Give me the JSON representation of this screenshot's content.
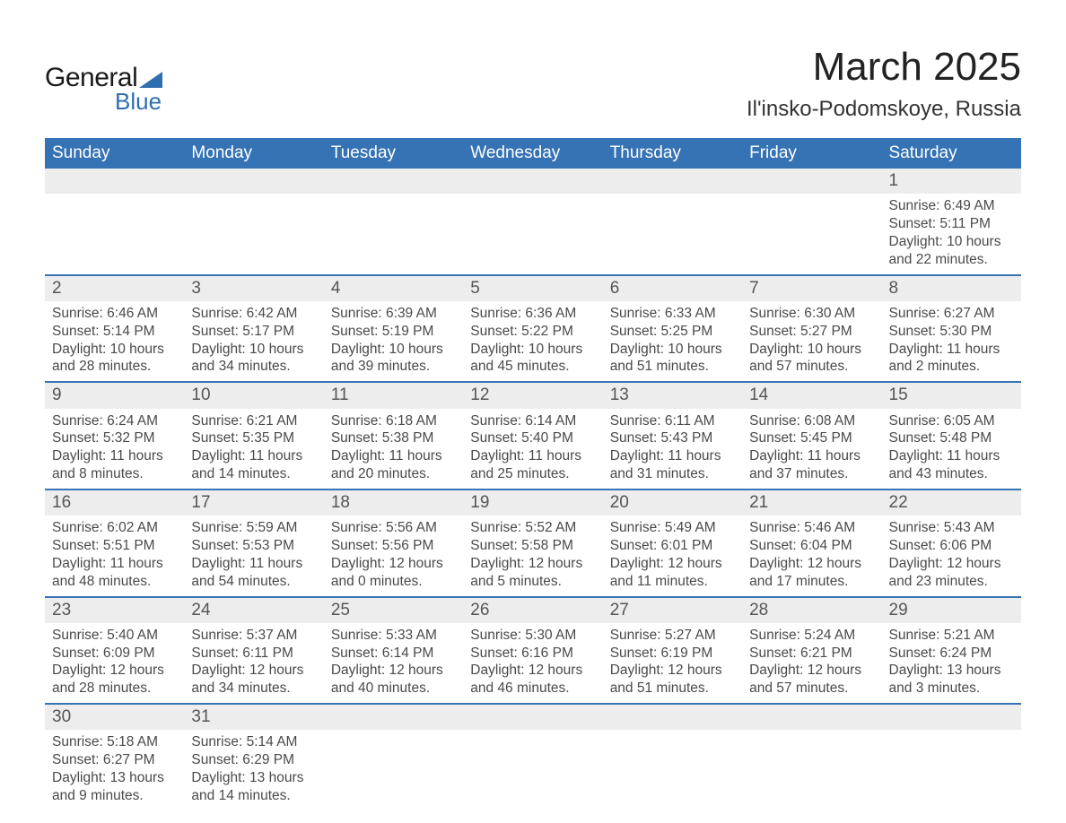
{
  "brand": {
    "word1": "General",
    "word2": "Blue",
    "accent_color": "#2f6fb0"
  },
  "title": "March 2025",
  "location": "Il'insko-Podomskoye, Russia",
  "colors": {
    "header_bg": "#3573b4",
    "header_text": "#ffffff",
    "row_divider": "#3573b4",
    "daynum_bg": "#ededed",
    "body_text": "#4a4a4a",
    "page_bg": "#ffffff"
  },
  "typography": {
    "title_fontsize": 44,
    "location_fontsize": 24,
    "weekday_fontsize": 19,
    "daynum_fontsize": 19,
    "cell_fontsize": 15.5
  },
  "weekdays": [
    "Sunday",
    "Monday",
    "Tuesday",
    "Wednesday",
    "Thursday",
    "Friday",
    "Saturday"
  ],
  "weeks": [
    [
      null,
      null,
      null,
      null,
      null,
      null,
      {
        "n": 1,
        "sunrise": "6:49 AM",
        "sunset": "5:11 PM",
        "daylight": "10 hours and 22 minutes."
      }
    ],
    [
      {
        "n": 2,
        "sunrise": "6:46 AM",
        "sunset": "5:14 PM",
        "daylight": "10 hours and 28 minutes."
      },
      {
        "n": 3,
        "sunrise": "6:42 AM",
        "sunset": "5:17 PM",
        "daylight": "10 hours and 34 minutes."
      },
      {
        "n": 4,
        "sunrise": "6:39 AM",
        "sunset": "5:19 PM",
        "daylight": "10 hours and 39 minutes."
      },
      {
        "n": 5,
        "sunrise": "6:36 AM",
        "sunset": "5:22 PM",
        "daylight": "10 hours and 45 minutes."
      },
      {
        "n": 6,
        "sunrise": "6:33 AM",
        "sunset": "5:25 PM",
        "daylight": "10 hours and 51 minutes."
      },
      {
        "n": 7,
        "sunrise": "6:30 AM",
        "sunset": "5:27 PM",
        "daylight": "10 hours and 57 minutes."
      },
      {
        "n": 8,
        "sunrise": "6:27 AM",
        "sunset": "5:30 PM",
        "daylight": "11 hours and 2 minutes."
      }
    ],
    [
      {
        "n": 9,
        "sunrise": "6:24 AM",
        "sunset": "5:32 PM",
        "daylight": "11 hours and 8 minutes."
      },
      {
        "n": 10,
        "sunrise": "6:21 AM",
        "sunset": "5:35 PM",
        "daylight": "11 hours and 14 minutes."
      },
      {
        "n": 11,
        "sunrise": "6:18 AM",
        "sunset": "5:38 PM",
        "daylight": "11 hours and 20 minutes."
      },
      {
        "n": 12,
        "sunrise": "6:14 AM",
        "sunset": "5:40 PM",
        "daylight": "11 hours and 25 minutes."
      },
      {
        "n": 13,
        "sunrise": "6:11 AM",
        "sunset": "5:43 PM",
        "daylight": "11 hours and 31 minutes."
      },
      {
        "n": 14,
        "sunrise": "6:08 AM",
        "sunset": "5:45 PM",
        "daylight": "11 hours and 37 minutes."
      },
      {
        "n": 15,
        "sunrise": "6:05 AM",
        "sunset": "5:48 PM",
        "daylight": "11 hours and 43 minutes."
      }
    ],
    [
      {
        "n": 16,
        "sunrise": "6:02 AM",
        "sunset": "5:51 PM",
        "daylight": "11 hours and 48 minutes."
      },
      {
        "n": 17,
        "sunrise": "5:59 AM",
        "sunset": "5:53 PM",
        "daylight": "11 hours and 54 minutes."
      },
      {
        "n": 18,
        "sunrise": "5:56 AM",
        "sunset": "5:56 PM",
        "daylight": "12 hours and 0 minutes."
      },
      {
        "n": 19,
        "sunrise": "5:52 AM",
        "sunset": "5:58 PM",
        "daylight": "12 hours and 5 minutes."
      },
      {
        "n": 20,
        "sunrise": "5:49 AM",
        "sunset": "6:01 PM",
        "daylight": "12 hours and 11 minutes."
      },
      {
        "n": 21,
        "sunrise": "5:46 AM",
        "sunset": "6:04 PM",
        "daylight": "12 hours and 17 minutes."
      },
      {
        "n": 22,
        "sunrise": "5:43 AM",
        "sunset": "6:06 PM",
        "daylight": "12 hours and 23 minutes."
      }
    ],
    [
      {
        "n": 23,
        "sunrise": "5:40 AM",
        "sunset": "6:09 PM",
        "daylight": "12 hours and 28 minutes."
      },
      {
        "n": 24,
        "sunrise": "5:37 AM",
        "sunset": "6:11 PM",
        "daylight": "12 hours and 34 minutes."
      },
      {
        "n": 25,
        "sunrise": "5:33 AM",
        "sunset": "6:14 PM",
        "daylight": "12 hours and 40 minutes."
      },
      {
        "n": 26,
        "sunrise": "5:30 AM",
        "sunset": "6:16 PM",
        "daylight": "12 hours and 46 minutes."
      },
      {
        "n": 27,
        "sunrise": "5:27 AM",
        "sunset": "6:19 PM",
        "daylight": "12 hours and 51 minutes."
      },
      {
        "n": 28,
        "sunrise": "5:24 AM",
        "sunset": "6:21 PM",
        "daylight": "12 hours and 57 minutes."
      },
      {
        "n": 29,
        "sunrise": "5:21 AM",
        "sunset": "6:24 PM",
        "daylight": "13 hours and 3 minutes."
      }
    ],
    [
      {
        "n": 30,
        "sunrise": "5:18 AM",
        "sunset": "6:27 PM",
        "daylight": "13 hours and 9 minutes."
      },
      {
        "n": 31,
        "sunrise": "5:14 AM",
        "sunset": "6:29 PM",
        "daylight": "13 hours and 14 minutes."
      },
      null,
      null,
      null,
      null,
      null
    ]
  ],
  "labels": {
    "sunrise": "Sunrise: ",
    "sunset": "Sunset: ",
    "daylight": "Daylight: "
  }
}
